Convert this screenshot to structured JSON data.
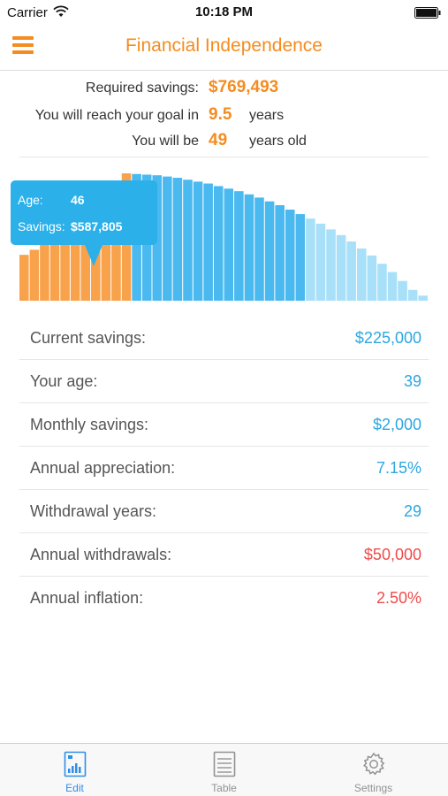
{
  "status_bar": {
    "carrier": "Carrier",
    "time": "10:18 PM"
  },
  "nav": {
    "title": "Financial Independence"
  },
  "summary": {
    "required_label": "Required savings:",
    "required_value": "$769,493",
    "goal_label": "You will reach your goal in",
    "goal_value": "9.5",
    "goal_unit": "years",
    "age_label": "You will be",
    "age_value": "49",
    "age_unit": "years old"
  },
  "tooltip": {
    "age_label": "Age:",
    "age_value": "46",
    "savings_label": "Savings:",
    "savings_value": "$587,805"
  },
  "chart_data": {
    "type": "bar",
    "series": [
      {
        "phase": "accumulation",
        "color": "#f8a24c",
        "values": [
          0.36,
          0.4,
          0.46,
          0.52,
          0.58,
          0.64,
          0.71,
          0.78,
          0.85,
          0.93,
          1.0
        ]
      },
      {
        "phase": "withdrawal",
        "color": "#4ab9ef",
        "values": [
          0.995,
          0.99,
          0.985,
          0.975,
          0.965,
          0.95,
          0.935,
          0.92,
          0.9,
          0.88,
          0.86,
          0.835,
          0.81,
          0.78,
          0.75,
          0.715,
          0.68
        ]
      },
      {
        "phase": "late-withdrawal",
        "color": "#a9e0f9",
        "values": [
          0.645,
          0.605,
          0.56,
          0.515,
          0.465,
          0.41,
          0.355,
          0.29,
          0.225,
          0.155,
          0.085,
          0.04
        ]
      }
    ]
  },
  "settings": [
    {
      "label": "Current savings:",
      "value": "$225,000",
      "color": "#2ca7e0"
    },
    {
      "label": "Your age:",
      "value": "39",
      "color": "#2ca7e0"
    },
    {
      "label": "Monthly savings:",
      "value": "$2,000",
      "color": "#2ca7e0"
    },
    {
      "label": "Annual appreciation:",
      "value": "7.15%",
      "color": "#2ca7e0"
    },
    {
      "label": "Withdrawal years:",
      "value": "29",
      "color": "#2ca7e0"
    },
    {
      "label": "Annual withdrawals:",
      "value": "$50,000",
      "color": "#f04b4b"
    },
    {
      "label": "Annual inflation:",
      "value": "2.50%",
      "color": "#f04b4b"
    }
  ],
  "tabs": [
    {
      "label": "Edit",
      "icon": "edit-document-icon",
      "active": true
    },
    {
      "label": "Table",
      "icon": "table-icon",
      "active": false
    },
    {
      "label": "Settings",
      "icon": "gear-icon",
      "active": false
    }
  ]
}
